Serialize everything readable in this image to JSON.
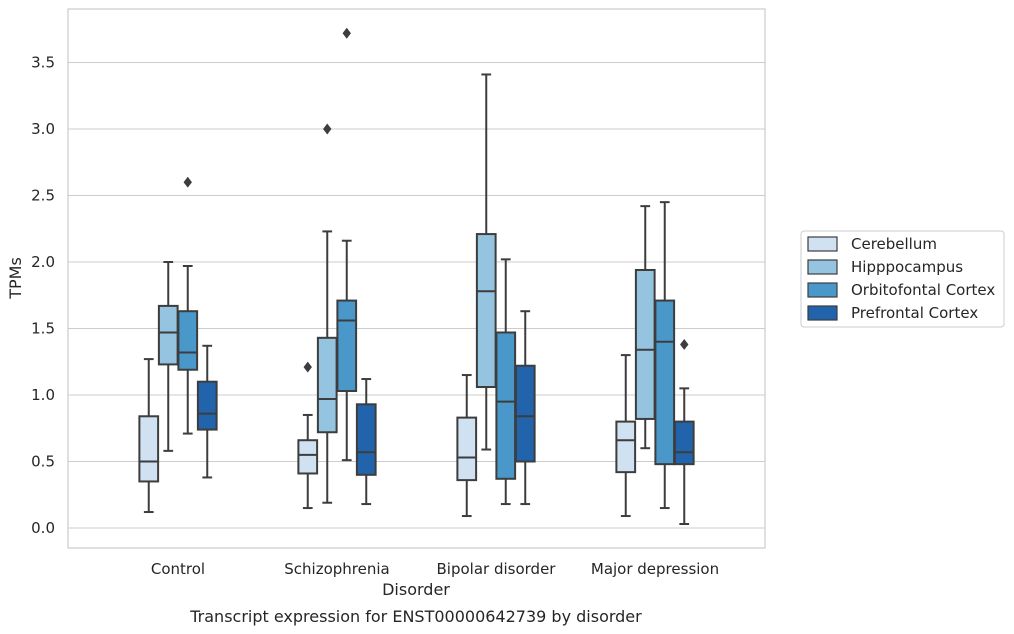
{
  "chart_data": {
    "type": "box",
    "title": "",
    "caption": "Transcript expression for ENST00000642739 by disorder",
    "xlabel": "Disorder",
    "ylabel": "TPMs",
    "ylim": [
      -0.15,
      3.9
    ],
    "yticks": [
      "0.0",
      "0.5",
      "1.0",
      "1.5",
      "2.0",
      "2.5",
      "3.0",
      "3.5"
    ],
    "grid": "horizontal",
    "legend_position": "right",
    "categories": [
      "Control",
      "Schizophrenia",
      "Bipolar disorder",
      "Major depression"
    ],
    "series": [
      {
        "name": "Cerebellum",
        "color": "#d0e1f2",
        "boxes": [
          {
            "whisker_low": 0.12,
            "q1": 0.35,
            "median": 0.5,
            "q3": 0.84,
            "whisker_high": 1.27,
            "outliers": []
          },
          {
            "whisker_low": 0.15,
            "q1": 0.41,
            "median": 0.55,
            "q3": 0.66,
            "whisker_high": 0.85,
            "outliers": [
              1.21
            ]
          },
          {
            "whisker_low": 0.09,
            "q1": 0.36,
            "median": 0.53,
            "q3": 0.83,
            "whisker_high": 1.15,
            "outliers": []
          },
          {
            "whisker_low": 0.09,
            "q1": 0.42,
            "median": 0.66,
            "q3": 0.8,
            "whisker_high": 1.3,
            "outliers": []
          }
        ]
      },
      {
        "name": "Hipppocampus",
        "color": "#94c4df",
        "boxes": [
          {
            "whisker_low": 0.58,
            "q1": 1.23,
            "median": 1.47,
            "q3": 1.67,
            "whisker_high": 2.0,
            "outliers": []
          },
          {
            "whisker_low": 0.19,
            "q1": 0.72,
            "median": 0.97,
            "q3": 1.43,
            "whisker_high": 2.23,
            "outliers": [
              3.0
            ]
          },
          {
            "whisker_low": 0.59,
            "q1": 1.06,
            "median": 1.78,
            "q3": 2.21,
            "whisker_high": 3.41,
            "outliers": []
          },
          {
            "whisker_low": 0.6,
            "q1": 0.82,
            "median": 1.34,
            "q3": 1.94,
            "whisker_high": 2.42,
            "outliers": []
          }
        ]
      },
      {
        "name": "Orbitofontal Cortex",
        "color": "#4a98c9",
        "boxes": [
          {
            "whisker_low": 0.71,
            "q1": 1.19,
            "median": 1.32,
            "q3": 1.63,
            "whisker_high": 1.97,
            "outliers": [
              2.6
            ]
          },
          {
            "whisker_low": 0.51,
            "q1": 1.03,
            "median": 1.56,
            "q3": 1.71,
            "whisker_high": 2.16,
            "outliers": [
              3.72
            ]
          },
          {
            "whisker_low": 0.18,
            "q1": 0.37,
            "median": 0.95,
            "q3": 1.47,
            "whisker_high": 2.02,
            "outliers": []
          },
          {
            "whisker_low": 0.15,
            "q1": 0.48,
            "median": 1.4,
            "q3": 1.71,
            "whisker_high": 2.45,
            "outliers": []
          }
        ]
      },
      {
        "name": "Prefrontal Cortex",
        "color": "#2164ab",
        "boxes": [
          {
            "whisker_low": 0.38,
            "q1": 0.74,
            "median": 0.86,
            "q3": 1.1,
            "whisker_high": 1.37,
            "outliers": []
          },
          {
            "whisker_low": 0.18,
            "q1": 0.4,
            "median": 0.57,
            "q3": 0.93,
            "whisker_high": 1.12,
            "outliers": []
          },
          {
            "whisker_low": 0.18,
            "q1": 0.5,
            "median": 0.84,
            "q3": 1.22,
            "whisker_high": 1.63,
            "outliers": []
          },
          {
            "whisker_low": 0.03,
            "q1": 0.48,
            "median": 0.57,
            "q3": 0.8,
            "whisker_high": 1.05,
            "outliers": [
              1.38
            ]
          }
        ]
      }
    ]
  }
}
